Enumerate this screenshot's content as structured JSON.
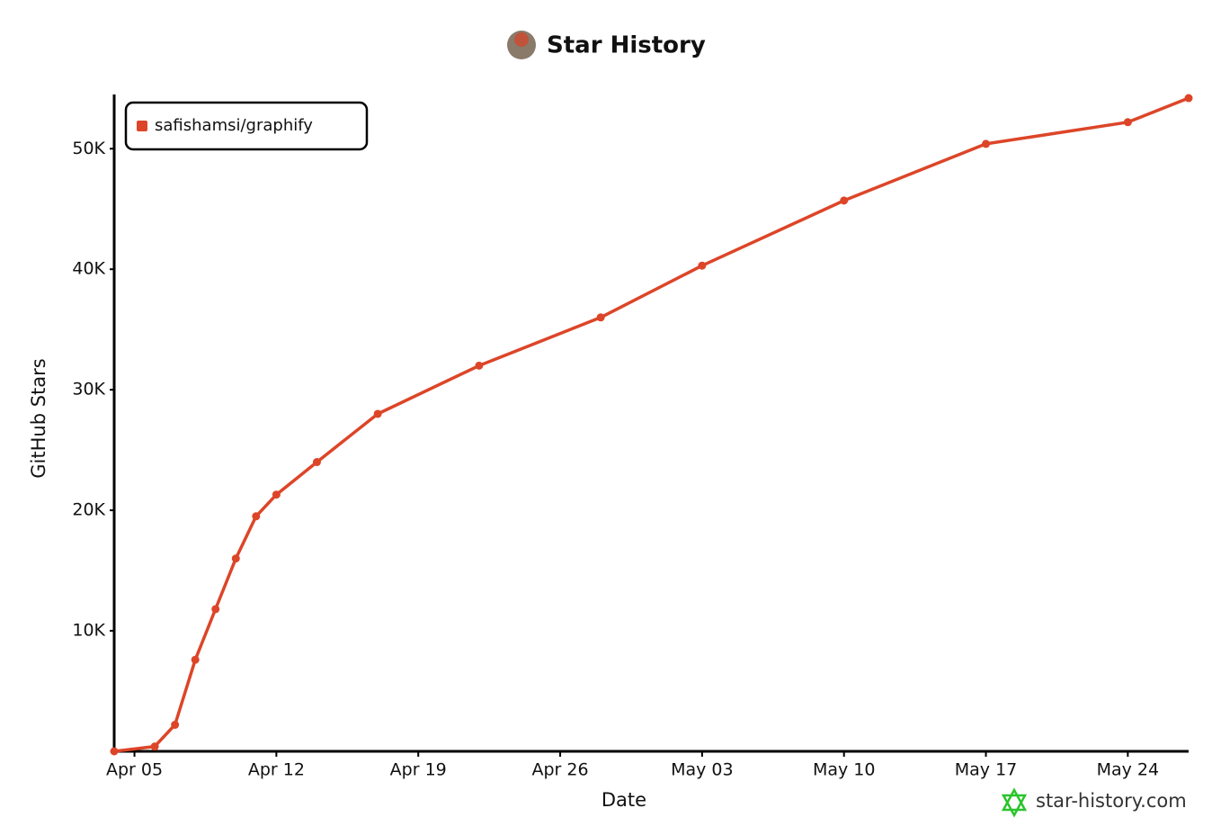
{
  "chart_data": {
    "type": "line",
    "title": "Star History",
    "x_label": "Date",
    "y_label": "GitHub Stars",
    "watermark": "star-history.com",
    "x": [
      "Apr 04",
      "Apr 06",
      "Apr 07",
      "Apr 08",
      "Apr 09",
      "Apr 10",
      "Apr 11",
      "Apr 12",
      "Apr 14",
      "Apr 17",
      "Apr 22",
      "Apr 28",
      "May 03",
      "May 10",
      "May 17",
      "May 24",
      "May 27"
    ],
    "series": [
      {
        "name": "safishamsi/graphify",
        "color": "#dd4528",
        "values": [
          0,
          400,
          2200,
          7600,
          11800,
          16000,
          19500,
          21300,
          24000,
          28000,
          32000,
          36000,
          40300,
          45700,
          50400,
          52200,
          54200
        ]
      }
    ],
    "xlim": [
      "Apr 04",
      "May 27"
    ],
    "xticks": [
      "Apr 05",
      "Apr 12",
      "Apr 19",
      "Apr 26",
      "May 03",
      "May 10",
      "May 17",
      "May 24"
    ],
    "ylim": [
      0,
      54500
    ],
    "yticks": [
      {
        "value": 10000,
        "label": "10K"
      },
      {
        "value": 20000,
        "label": "20K"
      },
      {
        "value": 30000,
        "label": "30K"
      },
      {
        "value": 40000,
        "label": "40K"
      },
      {
        "value": 50000,
        "label": "50K"
      }
    ],
    "grid": false,
    "legend": "upper-left"
  }
}
